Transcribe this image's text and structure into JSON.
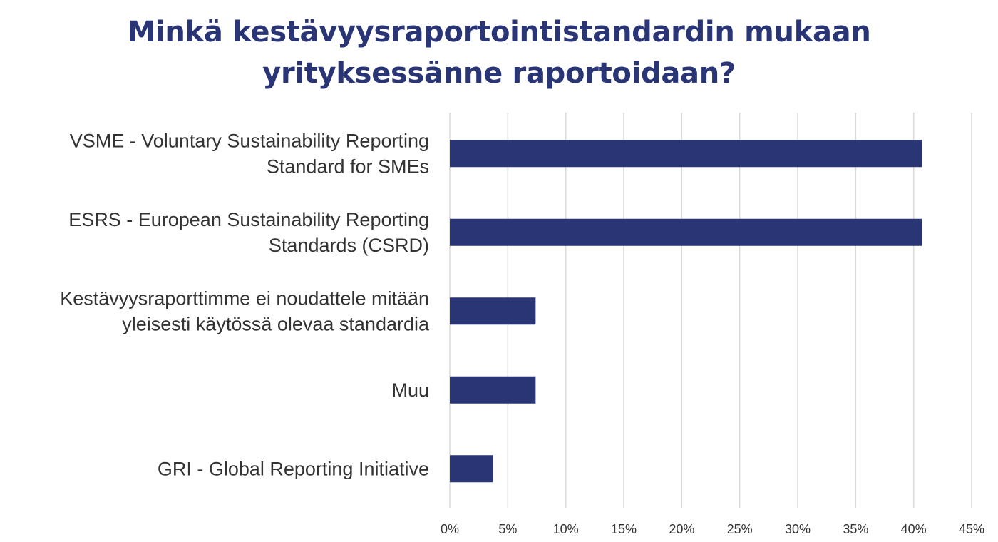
{
  "chart_data": {
    "type": "bar",
    "orientation": "horizontal",
    "title_lines": [
      "Minkä kestävyysraportointistandardin mukaan",
      "yrityksessänne raportoidaan?"
    ],
    "categories": [
      [
        "VSME - Voluntary Sustainability Reporting",
        "Standard for SMEs"
      ],
      [
        "ESRS - European Sustainability Reporting",
        "Standards (CSRD)"
      ],
      [
        "Kestävyysraporttimme ei noudattele mitään",
        "yleisesti käytössä olevaa standardia"
      ],
      [
        "Muu"
      ],
      [
        "GRI - Global Reporting Initiative"
      ]
    ],
    "values": [
      40.7,
      40.7,
      7.4,
      7.4,
      3.7
    ],
    "xlim": [
      0,
      45
    ],
    "xticks": [
      "0%",
      "5%",
      "10%",
      "15%",
      "20%",
      "25%",
      "30%",
      "35%",
      "40%",
      "45%"
    ],
    "grid": true,
    "bar_color": "#2a3575",
    "grid_color": "#d9d9d9"
  }
}
